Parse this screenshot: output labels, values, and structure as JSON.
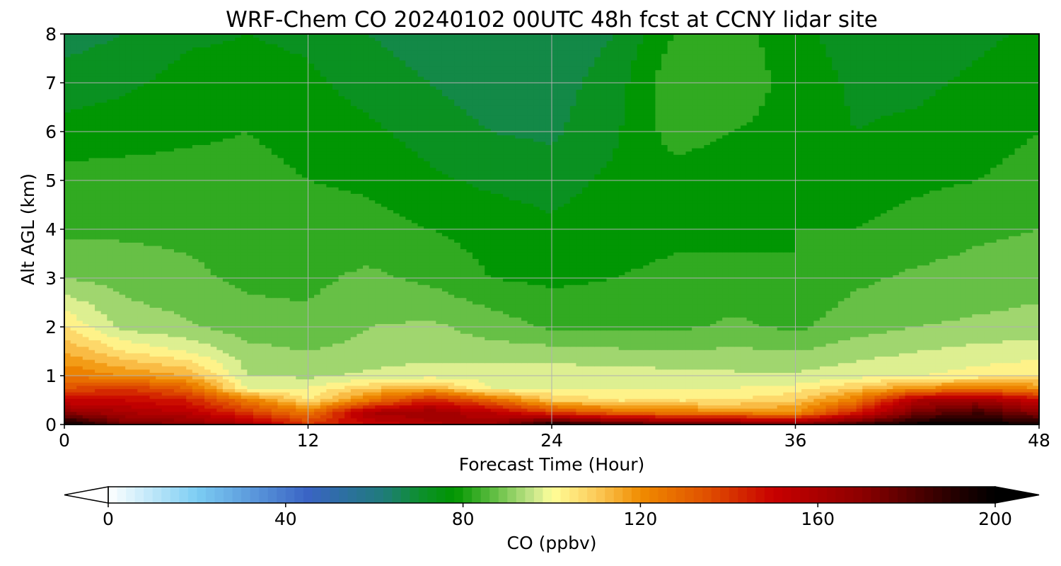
{
  "chart_data": {
    "type": "heatmap",
    "title": "WRF-Chem CO  20240102 00UTC 48h fcst at CCNY lidar site",
    "xlabel": "Forecast Time (Hour)",
    "ylabel": "Alt AGL (km)",
    "xlim": [
      0,
      48
    ],
    "ylim": [
      0,
      8
    ],
    "xticks": [
      "0",
      "12",
      "24",
      "36",
      "48"
    ],
    "yticks": [
      "0",
      "1",
      "2",
      "3",
      "4",
      "5",
      "6",
      "7",
      "8"
    ],
    "grid": true,
    "colorbar": {
      "label": "CO  (ppbv)",
      "range": [
        0,
        200
      ],
      "ticks": [
        "0",
        "40",
        "80",
        "120",
        "160",
        "200"
      ],
      "extend": "both",
      "stops": [
        {
          "v": 0,
          "c": "#ffffff"
        },
        {
          "v": 20,
          "c": "#7ccdf3"
        },
        {
          "v": 45,
          "c": "#3a64c4"
        },
        {
          "v": 62,
          "c": "#1f7b7b"
        },
        {
          "v": 70,
          "c": "#0e8f30"
        },
        {
          "v": 78,
          "c": "#009600"
        },
        {
          "v": 88,
          "c": "#6cc24a"
        },
        {
          "v": 96,
          "c": "#c8e68c"
        },
        {
          "v": 100,
          "c": "#ffff99"
        },
        {
          "v": 110,
          "c": "#fccb5a"
        },
        {
          "v": 120,
          "c": "#f08c00"
        },
        {
          "v": 135,
          "c": "#e05000"
        },
        {
          "v": 150,
          "c": "#c80000"
        },
        {
          "v": 170,
          "c": "#8c0000"
        },
        {
          "v": 190,
          "c": "#280000"
        },
        {
          "v": 200,
          "c": "#000000"
        }
      ]
    },
    "field": {
      "times": [
        0,
        3,
        6,
        9,
        12,
        15,
        18,
        21,
        24,
        27,
        30,
        33,
        36,
        39,
        42,
        45,
        48
      ],
      "altitudes": [
        0,
        0.25,
        0.5,
        0.75,
        1.0,
        1.5,
        2.0,
        3.0,
        4.0,
        5.0,
        6.0,
        7.0,
        8.0
      ],
      "values": [
        [
          200,
          175,
          170,
          160,
          140,
          150,
          158,
          165,
          195,
          185,
          180,
          178,
          172,
          185,
          198,
          200,
          195
        ],
        [
          170,
          160,
          155,
          140,
          125,
          160,
          165,
          155,
          140,
          130,
          125,
          122,
          120,
          145,
          175,
          185,
          170
        ],
        [
          150,
          150,
          145,
          125,
          105,
          125,
          145,
          130,
          110,
          105,
          105,
          105,
          110,
          125,
          160,
          165,
          150
        ],
        [
          135,
          140,
          130,
          100,
          100,
          110,
          115,
          100,
          100,
          100,
          100,
          100,
          102,
          110,
          120,
          125,
          120
        ],
        [
          125,
          120,
          115,
          95,
          94,
          96,
          98,
          98,
          98,
          98,
          97,
          96,
          96,
          98,
          100,
          102,
          104
        ],
        [
          115,
          105,
          100,
          92,
          90,
          92,
          93,
          92,
          92,
          91,
          90,
          91,
          90,
          93,
          95,
          97,
          98
        ],
        [
          105,
          93,
          91,
          87,
          86,
          90,
          91,
          88,
          84,
          84,
          84,
          86,
          84,
          88,
          90,
          91,
          92
        ],
        [
          90,
          88,
          86,
          84,
          84,
          86,
          84,
          80,
          79,
          80,
          81,
          82,
          80,
          84,
          86,
          87,
          88
        ],
        [
          84,
          84,
          84,
          84,
          83,
          82,
          80,
          78,
          76,
          78,
          79,
          78,
          80,
          80,
          82,
          84,
          85
        ],
        [
          82,
          82,
          82,
          82,
          80,
          79,
          76,
          74,
          73,
          76,
          78,
          77,
          79,
          77,
          79,
          80,
          82
        ],
        [
          77,
          78,
          79,
          80,
          78,
          76,
          73,
          70,
          69,
          74,
          82,
          80,
          78,
          75,
          76,
          78,
          80
        ],
        [
          72,
          74,
          77,
          77,
          76,
          73,
          70,
          67,
          68,
          72,
          84,
          83,
          78,
          74,
          74,
          76,
          78
        ],
        [
          68,
          70,
          74,
          75,
          74,
          70,
          67,
          65,
          66,
          70,
          80,
          82,
          77,
          72,
          72,
          74,
          76
        ]
      ]
    }
  }
}
